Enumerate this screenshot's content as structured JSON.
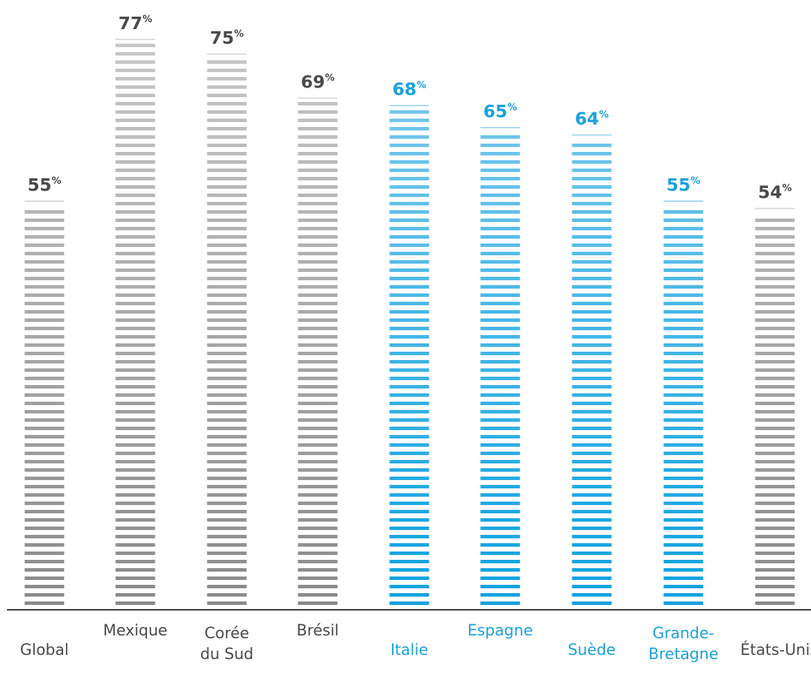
{
  "chart_data": {
    "type": "bar",
    "categories": [
      "Global",
      "Mexique",
      "Corée du Sud",
      "Brésil",
      "Italie",
      "Espagne",
      "Suède",
      "Grande-Bretagne",
      "États-Unis"
    ],
    "category_labels": [
      [
        "Global"
      ],
      [
        "Mexique"
      ],
      [
        "Corée",
        "du Sud"
      ],
      [
        "Brésil"
      ],
      [
        "Italie"
      ],
      [
        "Espagne"
      ],
      [
        "Suède"
      ],
      [
        "Grande-",
        "Bretagne"
      ],
      [
        "États-Unis"
      ]
    ],
    "values": [
      55,
      77,
      75,
      69,
      68,
      65,
      64,
      55,
      54
    ],
    "value_labels": [
      "55",
      "77",
      "75",
      "69",
      "68",
      "65",
      "64",
      "55",
      "54"
    ],
    "unit": "%",
    "highlighted": [
      false,
      false,
      false,
      false,
      true,
      true,
      true,
      true,
      false
    ],
    "ylim": [
      0,
      100
    ],
    "grid": false,
    "colors": {
      "gray_light": "#dadada",
      "gray_dark": "#8a8a8a",
      "gray_label": "#4a4a4a",
      "blue_light": "#a6d8f4",
      "blue_dark": "#0aa2df",
      "blue_label": "#1ba1dc",
      "axis": "#333333"
    }
  }
}
